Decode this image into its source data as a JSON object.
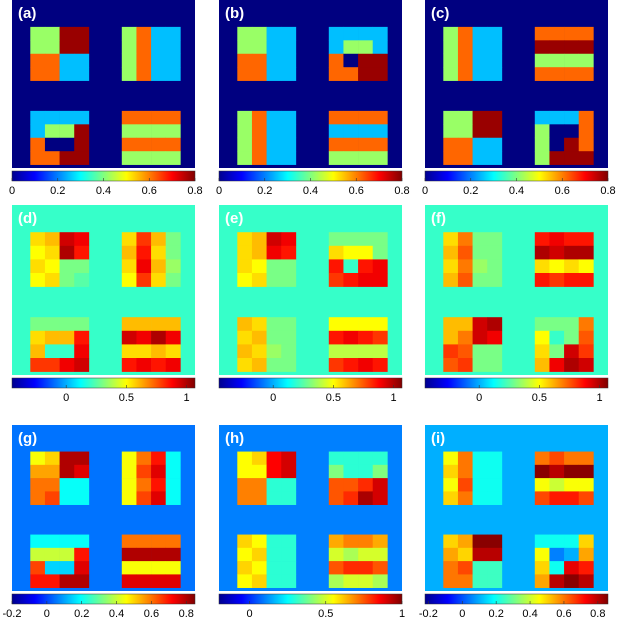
{
  "chart_data": [
    {
      "type": "heatmap",
      "label": "(a)",
      "background": 0,
      "clim": [
        0,
        0.8
      ],
      "cticks": [
        0,
        0.2,
        0.4,
        0.6,
        0.8
      ],
      "blocks": [
        [
          [
            0.42,
            0.42,
            0.78,
            0.78
          ],
          [
            0.42,
            0.42,
            0.78,
            0.78
          ],
          [
            0.62,
            0.62,
            0.25,
            0.25
          ],
          [
            0.62,
            0.62,
            0.25,
            0.25
          ]
        ],
        [
          [
            0.42,
            0.62,
            0.25,
            0.25
          ],
          [
            0.42,
            0.62,
            0.25,
            0.25
          ],
          [
            0.42,
            0.62,
            0.25,
            0.25
          ],
          [
            0.42,
            0.62,
            0.25,
            0.25
          ]
        ],
        [
          [
            0.25,
            0.25,
            0.25,
            0.25
          ],
          [
            0.25,
            0.42,
            0.42,
            0.78
          ],
          [
            0.62,
            0,
            0,
            0.78
          ],
          [
            0.62,
            0.62,
            0.78,
            0.78
          ]
        ],
        [
          [
            0.62,
            0.62,
            0.62,
            0.62
          ],
          [
            0.42,
            0.42,
            0.42,
            0.42
          ],
          [
            0.62,
            0.62,
            0.62,
            0.62
          ],
          [
            0.42,
            0.42,
            0.42,
            0.42
          ]
        ]
      ]
    },
    {
      "type": "heatmap",
      "label": "(b)",
      "background": 0,
      "clim": [
        0,
        0.8
      ],
      "cticks": [
        0,
        0.2,
        0.4,
        0.6,
        0.8
      ],
      "blocks": [
        [
          [
            0.42,
            0.42,
            0.25,
            0.25
          ],
          [
            0.42,
            0.42,
            0.25,
            0.25
          ],
          [
            0.62,
            0.62,
            0.25,
            0.25
          ],
          [
            0.62,
            0.62,
            0.25,
            0.25
          ]
        ],
        [
          [
            0.25,
            0.25,
            0.25,
            0.25
          ],
          [
            0.25,
            0.42,
            0.42,
            0.25
          ],
          [
            0.62,
            0,
            0.78,
            0.78
          ],
          [
            0.62,
            0.62,
            0.78,
            0.78
          ]
        ],
        [
          [
            0.42,
            0.62,
            0.25,
            0.25
          ],
          [
            0.42,
            0.62,
            0.25,
            0.25
          ],
          [
            0.42,
            0.62,
            0.25,
            0.25
          ],
          [
            0.42,
            0.62,
            0.25,
            0.25
          ]
        ],
        [
          [
            0.62,
            0.62,
            0.62,
            0.62
          ],
          [
            0.25,
            0.25,
            0.25,
            0.25
          ],
          [
            0.62,
            0.62,
            0.62,
            0.62
          ],
          [
            0.42,
            0.42,
            0.42,
            0.42
          ]
        ]
      ]
    },
    {
      "type": "heatmap",
      "label": "(c)",
      "background": 0,
      "clim": [
        0,
        0.8
      ],
      "cticks": [
        0,
        0.2,
        0.4,
        0.6,
        0.8
      ],
      "blocks": [
        [
          [
            0.42,
            0.62,
            0.25,
            0.25
          ],
          [
            0.42,
            0.62,
            0.25,
            0.25
          ],
          [
            0.42,
            0.62,
            0.25,
            0.25
          ],
          [
            0.42,
            0.62,
            0.25,
            0.25
          ]
        ],
        [
          [
            0.62,
            0.62,
            0.62,
            0.62
          ],
          [
            0.78,
            0.78,
            0.78,
            0.78
          ],
          [
            0.42,
            0.42,
            0.42,
            0.42
          ],
          [
            0.62,
            0.62,
            0.62,
            0.62
          ]
        ],
        [
          [
            0.42,
            0.42,
            0.78,
            0.78
          ],
          [
            0.42,
            0.42,
            0.78,
            0.78
          ],
          [
            0.62,
            0.62,
            0.25,
            0.25
          ],
          [
            0.62,
            0.62,
            0.25,
            0.25
          ]
        ],
        [
          [
            0.25,
            0.25,
            0.25,
            0.62
          ],
          [
            0.42,
            0,
            0,
            0.62
          ],
          [
            0.42,
            0,
            0.78,
            0.62
          ],
          [
            0.42,
            0.78,
            0.78,
            0.78
          ]
        ]
      ]
    },
    {
      "type": "heatmap",
      "label": "(d)",
      "background": 0.2,
      "clim": [
        -0.45,
        1.07
      ],
      "cticks": [
        0,
        0.5,
        1
      ],
      "blocks": [
        [
          [
            0.55,
            0.6,
            0.95,
            0.9
          ],
          [
            0.5,
            0.55,
            1,
            0.85
          ],
          [
            0.55,
            0.5,
            0.3,
            0.3
          ],
          [
            0.5,
            0.55,
            0.3,
            0.25
          ]
        ],
        [
          [
            0.55,
            0.8,
            0.6,
            0.3
          ],
          [
            0.6,
            0.85,
            0.55,
            0.3
          ],
          [
            0.55,
            0.9,
            0.6,
            0.35
          ],
          [
            0.5,
            0.8,
            0.55,
            0.3
          ]
        ],
        [
          [
            0.3,
            0.3,
            0.3,
            0.3
          ],
          [
            0.55,
            0.6,
            0.6,
            0.85
          ],
          [
            0.6,
            0.2,
            0.2,
            0.9
          ],
          [
            0.8,
            0.8,
            0.9,
            0.95
          ]
        ],
        [
          [
            0.6,
            0.6,
            0.6,
            0.6
          ],
          [
            0.95,
            0.9,
            1,
            0.9
          ],
          [
            0.55,
            0.55,
            0.6,
            0.55
          ],
          [
            0.85,
            0.9,
            0.85,
            0.9
          ]
        ]
      ]
    },
    {
      "type": "heatmap",
      "label": "(e)",
      "background": 0.2,
      "clim": [
        -0.45,
        1.07
      ],
      "cticks": [
        0,
        0.5,
        1
      ],
      "blocks": [
        [
          [
            0.55,
            0.6,
            0.95,
            0.9
          ],
          [
            0.55,
            0.6,
            0.9,
            0.85
          ],
          [
            0.55,
            0.5,
            0.3,
            0.3
          ],
          [
            0.5,
            0.55,
            0.3,
            0.3
          ]
        ],
        [
          [
            0.3,
            0.3,
            0.3,
            0.3
          ],
          [
            0.55,
            0.5,
            0.5,
            0.3
          ],
          [
            0.85,
            0.2,
            0.85,
            0.9
          ],
          [
            0.8,
            0.85,
            0.9,
            0.9
          ]
        ],
        [
          [
            0.6,
            0.55,
            0.3,
            0.3
          ],
          [
            0.55,
            0.6,
            0.3,
            0.3
          ],
          [
            0.6,
            0.55,
            0.35,
            0.3
          ],
          [
            0.55,
            0.6,
            0.3,
            0.3
          ]
        ],
        [
          [
            0.5,
            0.5,
            0.5,
            0.5
          ],
          [
            0.85,
            0.9,
            0.85,
            0.8
          ],
          [
            0.4,
            0.4,
            0.4,
            0.4
          ],
          [
            0.8,
            0.85,
            0.9,
            0.85
          ]
        ]
      ]
    },
    {
      "type": "heatmap",
      "label": "(f)",
      "background": 0.2,
      "clim": [
        -0.45,
        1.07
      ],
      "cticks": [
        0,
        0.5,
        1
      ],
      "blocks": [
        [
          [
            0.55,
            0.7,
            0.3,
            0.3
          ],
          [
            0.6,
            0.75,
            0.3,
            0.3
          ],
          [
            0.55,
            0.7,
            0.35,
            0.3
          ],
          [
            0.6,
            0.75,
            0.3,
            0.3
          ]
        ],
        [
          [
            0.85,
            0.9,
            0.85,
            0.85
          ],
          [
            1,
            0.95,
            1,
            1
          ],
          [
            0.55,
            0.5,
            0.55,
            0.5
          ],
          [
            0.85,
            0.8,
            0.85,
            0.85
          ]
        ],
        [
          [
            0.6,
            0.6,
            0.95,
            1
          ],
          [
            0.6,
            0.7,
            0.95,
            0.9
          ],
          [
            0.8,
            0.75,
            0.3,
            0.3
          ],
          [
            0.75,
            0.8,
            0.3,
            0.3
          ]
        ],
        [
          [
            0.3,
            0.3,
            0.3,
            0.7
          ],
          [
            0.5,
            0.2,
            0.3,
            0.75
          ],
          [
            0.55,
            0.3,
            0.95,
            0.8
          ],
          [
            0.6,
            0.9,
            1,
            0.95
          ]
        ]
      ]
    },
    {
      "type": "heatmap",
      "label": "(g)",
      "background": 0.05,
      "clim": [
        -0.2,
        0.85
      ],
      "cticks": [
        -0.2,
        0,
        0.2,
        0.4,
        0.6,
        0.8
      ],
      "blocks": [
        [
          [
            0.45,
            0.5,
            0.8,
            0.8
          ],
          [
            0.55,
            0.55,
            0.8,
            0.75
          ],
          [
            0.6,
            0.6,
            0.2,
            0.2
          ],
          [
            0.6,
            0.65,
            0.2,
            0.2
          ]
        ],
        [
          [
            0.45,
            0.6,
            0.7,
            0.2
          ],
          [
            0.45,
            0.65,
            0.75,
            0.2
          ],
          [
            0.45,
            0.6,
            0.7,
            0.2
          ],
          [
            0.45,
            0.65,
            0.75,
            0.2
          ]
        ],
        [
          [
            0.2,
            0.2,
            0.2,
            0.2
          ],
          [
            0.4,
            0.4,
            0.4,
            0.7
          ],
          [
            0.65,
            0.15,
            0.15,
            0.75
          ],
          [
            0.7,
            0.7,
            0.8,
            0.8
          ]
        ],
        [
          [
            0.6,
            0.6,
            0.6,
            0.6
          ],
          [
            0.8,
            0.8,
            0.8,
            0.8
          ],
          [
            0.45,
            0.45,
            0.45,
            0.45
          ],
          [
            0.75,
            0.75,
            0.75,
            0.75
          ]
        ]
      ]
    },
    {
      "type": "heatmap",
      "label": "(h)",
      "background": 0.1,
      "clim": [
        -0.2,
        1.0
      ],
      "cticks": [
        0,
        0.5,
        1
      ],
      "blocks": [
        [
          [
            0.55,
            0.6,
            0.85,
            0.9
          ],
          [
            0.55,
            0.55,
            0.85,
            0.9
          ],
          [
            0.7,
            0.7,
            0.3,
            0.3
          ],
          [
            0.7,
            0.7,
            0.3,
            0.3
          ]
        ],
        [
          [
            0.3,
            0.3,
            0.3,
            0.3
          ],
          [
            0.4,
            0.3,
            0.3,
            0.4
          ],
          [
            0.75,
            0.75,
            0.8,
            0.9
          ],
          [
            0.75,
            0.8,
            0.95,
            0.9
          ]
        ],
        [
          [
            0.6,
            0.55,
            0.3,
            0.3
          ],
          [
            0.55,
            0.6,
            0.3,
            0.3
          ],
          [
            0.6,
            0.55,
            0.3,
            0.3
          ],
          [
            0.55,
            0.6,
            0.3,
            0.3
          ]
        ],
        [
          [
            0.65,
            0.7,
            0.7,
            0.65
          ],
          [
            0.5,
            0.45,
            0.5,
            0.5
          ],
          [
            0.75,
            0.8,
            0.8,
            0.75
          ],
          [
            0.45,
            0.5,
            0.5,
            0.45
          ]
        ]
      ]
    },
    {
      "type": "heatmap",
      "label": "(i)",
      "background": 0.1,
      "clim": [
        -0.22,
        0.86
      ],
      "cticks": [
        -0.2,
        0,
        0.2,
        0.4,
        0.6,
        0.8
      ],
      "blocks": [
        [
          [
            0.45,
            0.6,
            0.2,
            0.2
          ],
          [
            0.5,
            0.6,
            0.2,
            0.2
          ],
          [
            0.45,
            0.65,
            0.2,
            0.2
          ],
          [
            0.5,
            0.6,
            0.2,
            0.2
          ]
        ],
        [
          [
            0.6,
            0.65,
            0.6,
            0.6
          ],
          [
            0.85,
            0.8,
            0.85,
            0.85
          ],
          [
            0.45,
            0.4,
            0.45,
            0.45
          ],
          [
            0.65,
            0.7,
            0.7,
            0.65
          ]
        ],
        [
          [
            0.5,
            0.55,
            0.85,
            0.85
          ],
          [
            0.55,
            0.5,
            0.8,
            0.8
          ],
          [
            0.6,
            0.65,
            0.25,
            0.25
          ],
          [
            0.6,
            0.6,
            0.25,
            0.25
          ]
        ],
        [
          [
            0.2,
            0.2,
            0.2,
            0.5
          ],
          [
            0.45,
            0.05,
            0.1,
            0.55
          ],
          [
            0.5,
            0.2,
            0.75,
            0.7
          ],
          [
            0.55,
            0.8,
            0.85,
            0.8
          ]
        ]
      ]
    }
  ]
}
